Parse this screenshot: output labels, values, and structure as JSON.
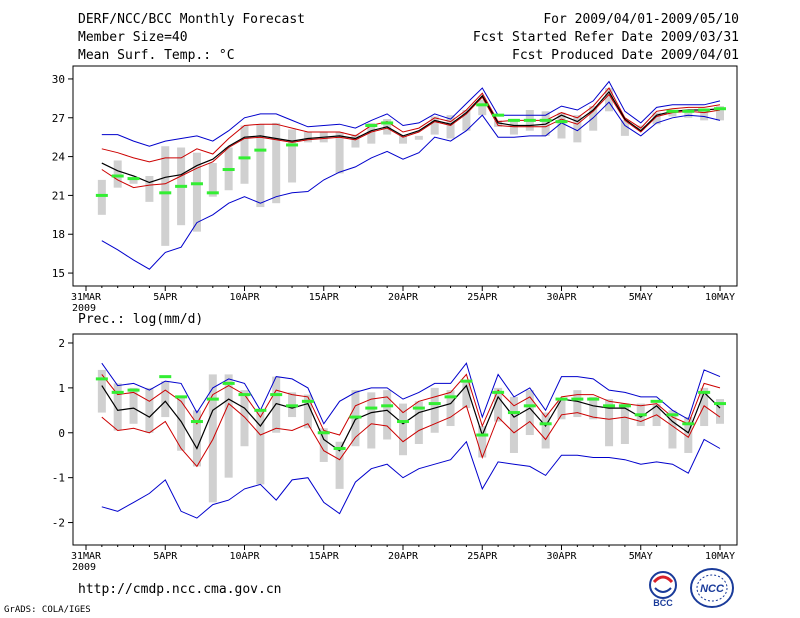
{
  "header": {
    "title": "DERF/NCC/BCC Monthly Forecast",
    "member": "Member Size=40",
    "variable": "Mean Surf. Temp.: °C",
    "period": "For 2009/04/01-2009/05/10",
    "fcst_started": "Fcst Started Refer Date 2009/03/31",
    "fcst_produced": "Fcst Produced Date 2009/04/01"
  },
  "footer": {
    "url": "http://cmdp.ncc.cma.gov.cn",
    "grads": "GrADS: COLA/IGES",
    "logo_bcc": "BCC",
    "logo_ncc": "NCC"
  },
  "colors": {
    "max_line": "#0000cc",
    "min_line": "#0000cc",
    "upper_line": "#cc0000",
    "lower_line": "#cc0000",
    "mean_line": "#000000",
    "observed": "#33ee33",
    "box": "#d0d0d0"
  },
  "chart_data": [
    {
      "type": "line",
      "title": "Mean Surf. Temp.: °C",
      "ylabel": "°C",
      "ylim": [
        14,
        31
      ],
      "yticks": [
        15,
        18,
        21,
        24,
        27,
        30
      ],
      "xticks": [
        "31MAR",
        "5APR",
        "10APR",
        "15APR",
        "20APR",
        "25APR",
        "30APR",
        "5MAY",
        "10MAY"
      ],
      "xtick_year": "2009",
      "x_days": [
        1,
        2,
        3,
        4,
        5,
        6,
        7,
        8,
        9,
        10,
        11,
        12,
        13,
        14,
        15,
        16,
        17,
        18,
        19,
        20,
        21,
        22,
        23,
        24,
        25,
        26,
        27,
        28,
        29,
        30,
        31,
        32,
        33,
        34,
        35,
        36,
        37,
        38,
        39,
        40
      ],
      "series": [
        {
          "name": "max",
          "values": [
            25.7,
            25.7,
            25.2,
            24.8,
            25.2,
            25.4,
            25.6,
            25.2,
            26.0,
            27.0,
            27.3,
            27.3,
            26.8,
            26.3,
            26.4,
            26.5,
            26.2,
            26.8,
            27.3,
            26.4,
            26.6,
            27.3,
            26.9,
            28.1,
            29.3,
            27.2,
            27.2,
            27.2,
            27.2,
            27.9,
            27.6,
            28.3,
            29.8,
            27.5,
            26.6,
            27.8,
            28.0,
            28.0,
            28.0,
            28.3
          ]
        },
        {
          "name": "upper",
          "values": [
            24.6,
            24.3,
            23.9,
            23.6,
            23.9,
            23.9,
            24.6,
            24.2,
            25.4,
            26.4,
            26.5,
            26.5,
            26.2,
            25.9,
            25.9,
            25.9,
            25.6,
            26.4,
            26.7,
            25.9,
            26.2,
            27.0,
            26.7,
            27.6,
            28.9,
            26.7,
            26.8,
            26.8,
            26.8,
            27.4,
            27.0,
            27.9,
            29.3,
            27.0,
            26.2,
            27.5,
            27.7,
            27.8,
            27.8,
            28.0
          ]
        },
        {
          "name": "mean",
          "values": [
            23.5,
            22.9,
            22.5,
            22.0,
            22.4,
            22.6,
            23.3,
            23.8,
            24.8,
            25.5,
            25.6,
            25.4,
            25.2,
            25.4,
            25.5,
            25.6,
            25.4,
            26.0,
            26.3,
            25.6,
            26.0,
            26.8,
            26.5,
            27.4,
            28.7,
            26.6,
            26.4,
            26.4,
            26.5,
            27.2,
            26.7,
            27.6,
            29.0,
            26.9,
            26.0,
            27.2,
            27.5,
            27.6,
            27.6,
            27.7
          ]
        },
        {
          "name": "lower",
          "values": [
            23.0,
            22.2,
            21.6,
            21.8,
            21.9,
            22.5,
            23.1,
            23.6,
            24.7,
            25.4,
            25.5,
            25.3,
            25.1,
            25.3,
            25.4,
            25.5,
            25.3,
            25.9,
            26.2,
            25.5,
            25.9,
            26.7,
            26.4,
            27.3,
            28.6,
            26.4,
            26.3,
            26.3,
            26.3,
            26.9,
            26.5,
            27.5,
            28.8,
            26.8,
            25.9,
            27.1,
            27.4,
            27.5,
            27.4,
            27.6
          ]
        },
        {
          "name": "min",
          "values": [
            17.5,
            16.8,
            16.0,
            15.3,
            16.6,
            17.0,
            18.9,
            19.5,
            20.4,
            20.9,
            20.4,
            20.9,
            21.2,
            21.3,
            22.2,
            22.8,
            23.2,
            23.9,
            24.4,
            23.8,
            24.3,
            25.5,
            25.2,
            26.0,
            27.2,
            25.5,
            25.5,
            25.6,
            25.6,
            26.6,
            26.0,
            27.0,
            28.2,
            26.4,
            25.6,
            26.6,
            27.0,
            27.2,
            27.1,
            26.8
          ]
        },
        {
          "name": "observed",
          "values": [
            21.0,
            22.5,
            22.3,
            null,
            21.2,
            21.7,
            21.9,
            21.2,
            23.0,
            23.9,
            24.5,
            null,
            24.9,
            null,
            null,
            null,
            null,
            26.4,
            26.6,
            null,
            null,
            null,
            null,
            null,
            28.0,
            27.2,
            26.8,
            26.8,
            26.8,
            26.7,
            null,
            null,
            null,
            null,
            null,
            null,
            27.5,
            27.5,
            27.6,
            27.7
          ]
        },
        {
          "name": "box_high",
          "values": [
            22.2,
            23.7,
            22.3,
            22.5,
            24.8,
            24.7,
            24.3,
            23.5,
            24.7,
            26.4,
            26.5,
            26.6,
            26.1,
            25.9,
            25.9,
            25.9,
            25.7,
            26.6,
            26.9,
            25.6,
            25.6,
            27.1,
            27.2,
            27.6,
            28.4,
            26.8,
            26.9,
            27.6,
            27.5,
            27.4,
            27.2,
            27.9,
            29.3,
            26.8,
            26.4,
            27.4,
            27.6,
            27.6,
            27.6,
            27.9
          ]
        },
        {
          "name": "box_low",
          "values": [
            19.5,
            21.6,
            21.9,
            20.5,
            17.1,
            18.7,
            18.2,
            20.9,
            21.4,
            21.9,
            20.1,
            20.4,
            22.0,
            25.1,
            25.1,
            22.7,
            24.7,
            25.0,
            25.7,
            25.0,
            25.3,
            25.7,
            25.4,
            26.0,
            27.2,
            26.3,
            25.7,
            26.0,
            25.6,
            25.4,
            25.1,
            26.0,
            27.5,
            25.6,
            26.1,
            26.5,
            27.1,
            27.0,
            26.8,
            26.8
          ]
        }
      ]
    },
    {
      "type": "line",
      "title": "Prec.: log(mm/d)",
      "ylabel": "log(mm/d)",
      "ylim": [
        -2.5,
        2.2
      ],
      "yticks": [
        -2,
        -1,
        0,
        1,
        2
      ],
      "xticks": [
        "31MAR",
        "5APR",
        "10APR",
        "15APR",
        "20APR",
        "25APR",
        "30APR",
        "5MAY",
        "10MAY"
      ],
      "xtick_year": "2009",
      "x_days": [
        1,
        2,
        3,
        4,
        5,
        6,
        7,
        8,
        9,
        10,
        11,
        12,
        13,
        14,
        15,
        16,
        17,
        18,
        19,
        20,
        21,
        22,
        23,
        24,
        25,
        26,
        27,
        28,
        29,
        30,
        31,
        32,
        33,
        34,
        35,
        36,
        37,
        38,
        39,
        40
      ],
      "series": [
        {
          "name": "max",
          "values": [
            1.55,
            1.05,
            1.1,
            0.95,
            1.15,
            1.1,
            0.45,
            1.0,
            1.2,
            1.1,
            0.5,
            1.25,
            1.2,
            1.0,
            0.2,
            0.7,
            0.9,
            1.0,
            1.0,
            0.75,
            0.9,
            1.1,
            1.1,
            1.55,
            0.35,
            1.3,
            0.8,
            1.0,
            0.5,
            1.25,
            1.25,
            1.2,
            0.95,
            0.9,
            0.8,
            0.8,
            0.5,
            0.3,
            1.4,
            1.25
          ]
        },
        {
          "name": "upper",
          "values": [
            1.3,
            0.85,
            0.9,
            0.7,
            0.95,
            0.7,
            0.2,
            0.85,
            1.05,
            0.85,
            0.35,
            0.95,
            0.85,
            0.8,
            0.05,
            -0.05,
            0.6,
            0.75,
            0.8,
            0.45,
            0.7,
            0.8,
            0.9,
            1.3,
            0.15,
            0.95,
            0.6,
            0.8,
            0.35,
            0.8,
            0.85,
            0.85,
            0.7,
            0.65,
            0.6,
            0.65,
            0.35,
            0.2,
            1.1,
            1.0
          ]
        },
        {
          "name": "mean",
          "values": [
            1.05,
            0.5,
            0.55,
            0.35,
            0.7,
            0.25,
            -0.35,
            0.5,
            0.75,
            0.55,
            0.15,
            0.65,
            0.55,
            0.65,
            -0.15,
            -0.4,
            0.3,
            0.45,
            0.5,
            0.2,
            0.45,
            0.55,
            0.65,
            1.05,
            -0.05,
            0.8,
            0.35,
            0.55,
            0.15,
            0.75,
            0.7,
            0.6,
            0.55,
            0.55,
            0.35,
            0.6,
            0.25,
            0.0,
            0.9,
            0.55
          ]
        },
        {
          "name": "lower",
          "values": [
            0.35,
            0.05,
            0.1,
            0.0,
            0.25,
            -0.35,
            -0.75,
            -0.15,
            0.65,
            0.35,
            -0.05,
            0.1,
            0.05,
            0.2,
            -0.4,
            -0.6,
            -0.1,
            0.2,
            0.15,
            -0.2,
            0.05,
            0.2,
            0.35,
            0.6,
            -0.55,
            0.35,
            0.0,
            0.25,
            -0.15,
            0.4,
            0.45,
            0.35,
            0.3,
            0.35,
            0.25,
            0.4,
            0.15,
            -0.1,
            0.6,
            0.35
          ]
        },
        {
          "name": "min",
          "values": [
            -1.65,
            -1.75,
            -1.55,
            -1.35,
            -1.05,
            -1.75,
            -1.9,
            -1.6,
            -1.5,
            -1.25,
            -1.15,
            -1.5,
            -1.05,
            -1.0,
            -1.55,
            -1.8,
            -1.1,
            -0.8,
            -0.7,
            -1.0,
            -0.8,
            -0.7,
            -0.6,
            -0.2,
            -1.25,
            -0.65,
            -0.7,
            -0.75,
            -0.95,
            -0.5,
            -0.5,
            -0.55,
            -0.55,
            -0.6,
            -0.7,
            -0.65,
            -0.7,
            -0.9,
            -0.15,
            -0.35
          ]
        },
        {
          "name": "observed",
          "values": [
            1.2,
            0.9,
            0.95,
            null,
            1.25,
            0.8,
            0.25,
            0.75,
            1.1,
            0.85,
            0.5,
            0.85,
            0.6,
            0.7,
            0.0,
            -0.35,
            0.35,
            0.55,
            0.6,
            0.25,
            0.55,
            0.65,
            0.8,
            1.15,
            -0.05,
            0.9,
            0.45,
            0.6,
            0.2,
            0.75,
            0.75,
            0.75,
            0.6,
            0.6,
            0.4,
            0.7,
            0.4,
            0.2,
            0.9,
            0.65
          ]
        },
        {
          "name": "box_high",
          "values": [
            1.4,
            1.1,
            1.0,
            1.0,
            1.15,
            0.8,
            0.5,
            1.3,
            1.3,
            0.95,
            0.5,
            1.25,
            0.9,
            0.85,
            0.1,
            -0.2,
            0.95,
            0.9,
            0.95,
            0.65,
            0.7,
            1.0,
            0.95,
            1.15,
            0.15,
            1.0,
            0.8,
            0.95,
            0.45,
            0.75,
            0.95,
            0.8,
            0.75,
            0.65,
            0.65,
            0.65,
            0.5,
            0.35,
            1.0,
            0.75
          ]
        },
        {
          "name": "box_low",
          "values": [
            0.45,
            0.05,
            0.2,
            0.0,
            0.35,
            -0.4,
            -0.75,
            -1.55,
            -1.0,
            -0.3,
            -1.15,
            0.0,
            0.35,
            0.1,
            -0.65,
            -1.25,
            -0.3,
            -0.35,
            -0.15,
            -0.5,
            -0.25,
            0.0,
            0.15,
            0.55,
            -0.55,
            0.25,
            -0.45,
            -0.05,
            -0.35,
            0.3,
            0.35,
            0.3,
            -0.3,
            -0.25,
            0.15,
            0.15,
            -0.35,
            -0.45,
            0.15,
            0.2
          ]
        }
      ]
    }
  ]
}
